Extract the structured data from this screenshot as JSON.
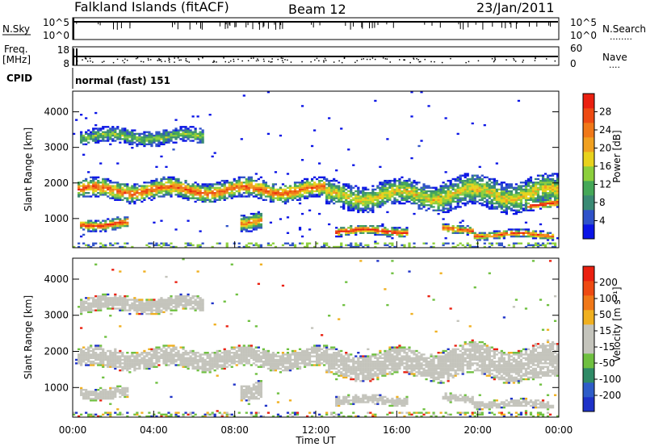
{
  "header": {
    "station": "Falkland Islands (fitACF)",
    "beam": "Beam 12",
    "date": "23/Jan/2011"
  },
  "strip": {
    "nsky_label": "N.Sky",
    "nsearch_label": "N.Search",
    "nsearch_marker": "........",
    "nsky_ticks": [
      "10^5",
      "10^0"
    ],
    "nsearch_ticks": [
      "10^5",
      "10^0"
    ],
    "freq_label_1": "Freq.",
    "freq_label_2": "[MHz]",
    "freq_ticks": [
      "18",
      "8"
    ],
    "nave_label": "Nave",
    "nave_marker": "....",
    "nave_ticks": [
      "60",
      "0"
    ],
    "cpid_label": "CPID",
    "cpid_value": "normal (fast) 151"
  },
  "chart_data": [
    {
      "type": "heatmap",
      "name": "power",
      "ylabel": "Slant Range [km]",
      "xlabel": "",
      "x_ticks": [
        "00:00",
        "04:00",
        "08:00",
        "12:00",
        "16:00",
        "20:00",
        "00:00"
      ],
      "x_range_hours": [
        0,
        24
      ],
      "y_ticks": [
        1000,
        2000,
        3000,
        4000
      ],
      "ylim": [
        180,
        4580
      ],
      "colorbar": {
        "label": "Power [dB]",
        "ticks": [
          "4",
          "8",
          "12",
          "16",
          "20",
          "24",
          "28"
        ],
        "colors": [
          "#0a14e6",
          "#2f52c9",
          "#3a8a74",
          "#45a858",
          "#8ccf3c",
          "#e8d21c",
          "#f0a020",
          "#f07818",
          "#ee4a12",
          "#ea2010"
        ]
      },
      "bands": [
        {
          "start": 0.2,
          "end": 12.5,
          "center": 1800,
          "half_width": 280,
          "level": 0.85
        },
        {
          "start": 12.5,
          "end": 18.0,
          "center": 1650,
          "half_width": 380,
          "level": 0.6
        },
        {
          "start": 18.0,
          "end": 24.0,
          "center": 1700,
          "half_width": 450,
          "level": 0.6
        },
        {
          "start": 0.4,
          "end": 2.8,
          "center": 850,
          "half_width": 170,
          "level": 0.95
        },
        {
          "start": 13.0,
          "end": 16.5,
          "center": 650,
          "half_width": 140,
          "level": 1.0
        },
        {
          "start": 18.2,
          "end": 19.8,
          "center": 700,
          "half_width": 130,
          "level": 0.9
        },
        {
          "start": 19.8,
          "end": 23.8,
          "center": 550,
          "half_width": 120,
          "level": 0.9
        },
        {
          "start": 8.3,
          "end": 9.3,
          "center": 950,
          "half_width": 250,
          "level": 0.75
        },
        {
          "start": 0.4,
          "end": 6.5,
          "center": 3300,
          "half_width": 220,
          "level": 0.45
        },
        {
          "start": 22.5,
          "end": 24.0,
          "center": 1400,
          "half_width": 140,
          "level": 1.0
        }
      ]
    },
    {
      "type": "heatmap",
      "name": "velocity",
      "ylabel": "Slant Range [km]",
      "xlabel": "Time UT",
      "x_ticks": [
        "00:00",
        "04:00",
        "08:00",
        "12:00",
        "16:00",
        "20:00",
        "00:00"
      ],
      "x_range_hours": [
        0,
        24
      ],
      "y_ticks": [
        1000,
        2000,
        3000,
        4000
      ],
      "ylim": [
        180,
        4580
      ],
      "colorbar": {
        "label": "Velocity [m s⁻¹]",
        "ticks": [
          "200",
          "100",
          "50",
          "15",
          "-15",
          "-50",
          "-100",
          "-200"
        ],
        "colors": [
          "#1e32c8",
          "#2e5cc8",
          "#2f8a66",
          "#6fc040",
          "#c4c4bc",
          "#c4c4bc",
          "#f0b020",
          "#f07818",
          "#ee4a12",
          "#ea2010"
        ]
      }
    }
  ]
}
